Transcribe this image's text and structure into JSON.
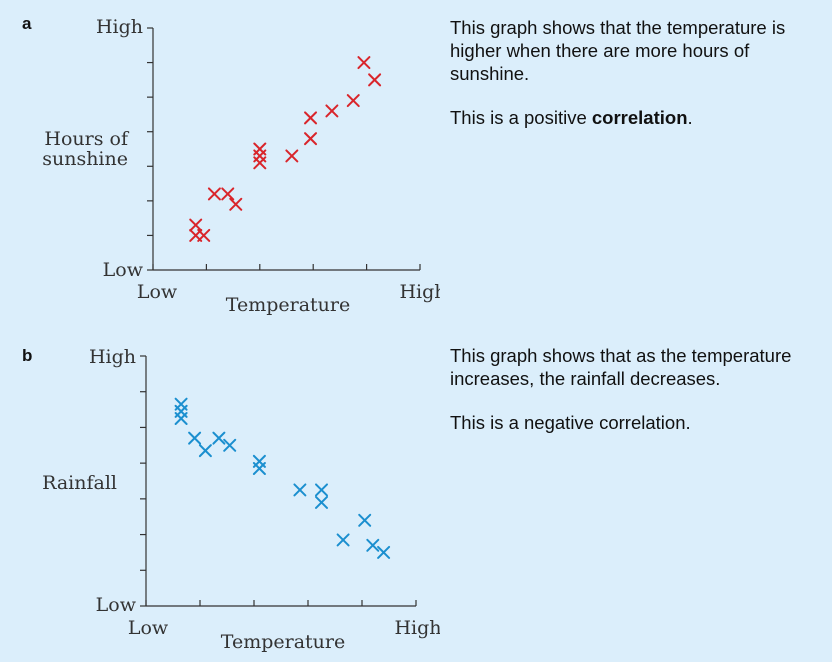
{
  "panels": [
    {
      "letter": "a",
      "color": "#d9252b",
      "text1": "This graph shows that the temperature is higher when there are more hours of sunshine.",
      "text2_before": "This is a positive ",
      "text2_bold": "correlation",
      "text2_after": "."
    },
    {
      "letter": "b",
      "color": "#1b8fcf",
      "text1": "This graph shows that as the temperature increases, the rainfall decreases.",
      "text2_before": "This is a negative correlation.",
      "text2_bold": "",
      "text2_after": ""
    }
  ],
  "chart_data": [
    {
      "type": "scatter",
      "title": "",
      "xlabel": "Temperature",
      "ylabel": "Hours of sunshine",
      "x_tick_labels": {
        "low": "Low",
        "high": "High"
      },
      "y_tick_labels": {
        "low": "Low",
        "high": "High"
      },
      "xlim": [
        0,
        5
      ],
      "ylim": [
        0,
        7
      ],
      "marker": "x",
      "color": "#d9252b",
      "points": [
        [
          0.8,
          1.3
        ],
        [
          0.8,
          1.0
        ],
        [
          0.95,
          1.0
        ],
        [
          1.15,
          2.2
        ],
        [
          1.4,
          2.2
        ],
        [
          1.55,
          1.9
        ],
        [
          2.0,
          3.3
        ],
        [
          2.0,
          3.1
        ],
        [
          2.0,
          3.5
        ],
        [
          2.6,
          3.3
        ],
        [
          2.95,
          3.8
        ],
        [
          2.95,
          4.4
        ],
        [
          3.35,
          4.6
        ],
        [
          3.75,
          4.9
        ],
        [
          3.95,
          6.0
        ],
        [
          4.15,
          5.5
        ]
      ]
    },
    {
      "type": "scatter",
      "title": "",
      "xlabel": "Temperature",
      "ylabel": "Rainfall",
      "x_tick_labels": {
        "low": "Low",
        "high": "High"
      },
      "y_tick_labels": {
        "low": "Low",
        "high": "High"
      },
      "xlim": [
        0,
        5
      ],
      "ylim": [
        0,
        7
      ],
      "marker": "x",
      "color": "#1b8fcf",
      "points": [
        [
          0.65,
          5.65
        ],
        [
          0.65,
          5.45
        ],
        [
          0.65,
          5.25
        ],
        [
          0.9,
          4.7
        ],
        [
          1.1,
          4.35
        ],
        [
          1.35,
          4.7
        ],
        [
          1.55,
          4.5
        ],
        [
          2.1,
          4.05
        ],
        [
          2.1,
          3.85
        ],
        [
          2.85,
          3.25
        ],
        [
          3.25,
          3.25
        ],
        [
          3.25,
          2.9
        ],
        [
          3.65,
          1.85
        ],
        [
          4.05,
          2.4
        ],
        [
          4.2,
          1.7
        ],
        [
          4.4,
          1.5
        ]
      ]
    }
  ]
}
